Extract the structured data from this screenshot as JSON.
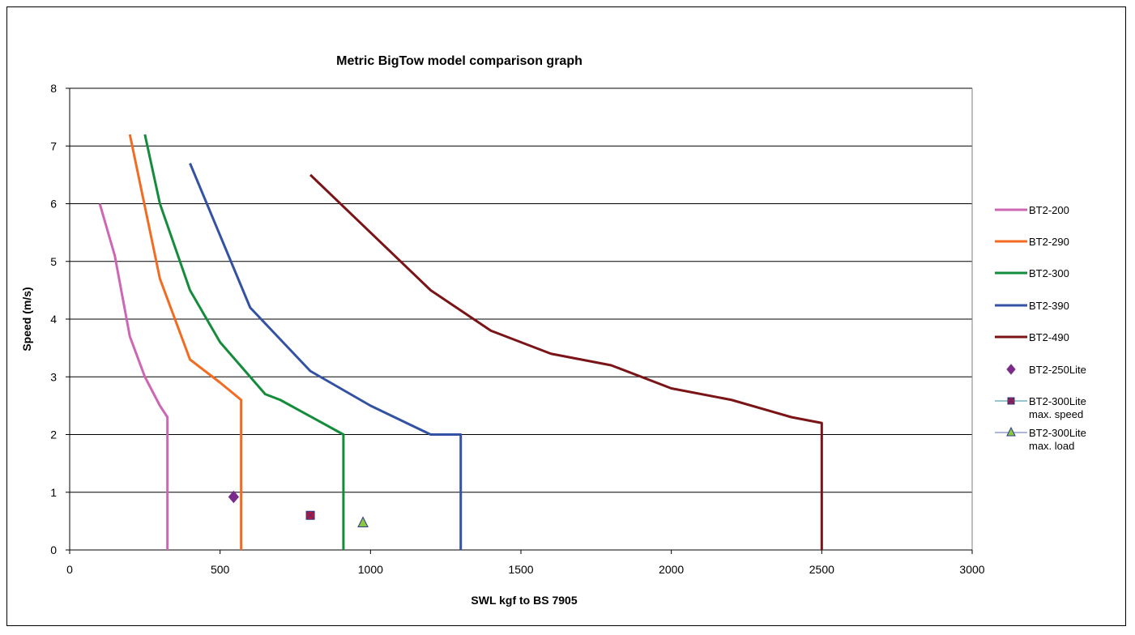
{
  "chart_data": {
    "type": "line",
    "title": "Metric BigTow model comparison graph",
    "xlabel": "SWL kgf to BS 7905",
    "ylabel": "Speed (m/s)",
    "xlim": [
      0,
      3000
    ],
    "ylim": [
      0,
      8
    ],
    "x_ticks": [
      "0",
      "500",
      "1000",
      "1500",
      "2000",
      "2500",
      "3000"
    ],
    "y_ticks": [
      "0",
      "1",
      "2",
      "3",
      "4",
      "5",
      "6",
      "7",
      "8"
    ],
    "grid": "horizontal",
    "legend_position": "right",
    "series": [
      {
        "name": "BT2-200",
        "color": "#cc66b5",
        "marker": "none",
        "x": [
          100,
          150,
          200,
          250,
          300,
          325,
          325
        ],
        "y": [
          6.0,
          5.1,
          3.7,
          3.0,
          2.5,
          2.3,
          0
        ]
      },
      {
        "name": "BT2-290",
        "color": "#f26b21",
        "marker": "none",
        "x": [
          200,
          300,
          400,
          500,
          570,
          570
        ],
        "y": [
          7.2,
          4.7,
          3.3,
          2.9,
          2.6,
          0
        ]
      },
      {
        "name": "BT2-300",
        "color": "#148c3c",
        "marker": "none",
        "x": [
          250,
          300,
          400,
          500,
          650,
          700,
          910,
          910
        ],
        "y": [
          7.2,
          6.0,
          4.5,
          3.6,
          2.7,
          2.6,
          2.0,
          0
        ]
      },
      {
        "name": "BT2-390",
        "color": "#3352a3",
        "marker": "none",
        "x": [
          400,
          600,
          800,
          1000,
          1200,
          1300,
          1300
        ],
        "y": [
          6.7,
          4.2,
          3.1,
          2.5,
          2.0,
          2.0,
          0
        ]
      },
      {
        "name": "BT2-490",
        "color": "#7a1416",
        "marker": "none",
        "x": [
          800,
          1200,
          1400,
          1600,
          1800,
          2000,
          2200,
          2400,
          2500,
          2500
        ],
        "y": [
          6.5,
          4.5,
          3.8,
          3.4,
          3.2,
          2.8,
          2.6,
          2.3,
          2.2,
          0
        ]
      },
      {
        "name": "BT2-250Lite",
        "color": "#7b2c8a",
        "marker": "diamond",
        "x": [
          545
        ],
        "y": [
          0.92
        ]
      },
      {
        "name": "BT2-300Lite max. speed",
        "legend_lines": [
          "BT2-300Lite",
          "max. speed"
        ],
        "color": "#c8102e",
        "line_color": "#2e8b9a",
        "marker": "square-x",
        "x": [
          800
        ],
        "y": [
          0.6
        ]
      },
      {
        "name": "BT2-300Lite max. load",
        "legend_lines": [
          "BT2-300Lite",
          "max. load"
        ],
        "color": "#8dc63f",
        "line_color": "#5b6fb5",
        "marker": "triangle",
        "x": [
          975
        ],
        "y": [
          0.47
        ]
      }
    ]
  }
}
